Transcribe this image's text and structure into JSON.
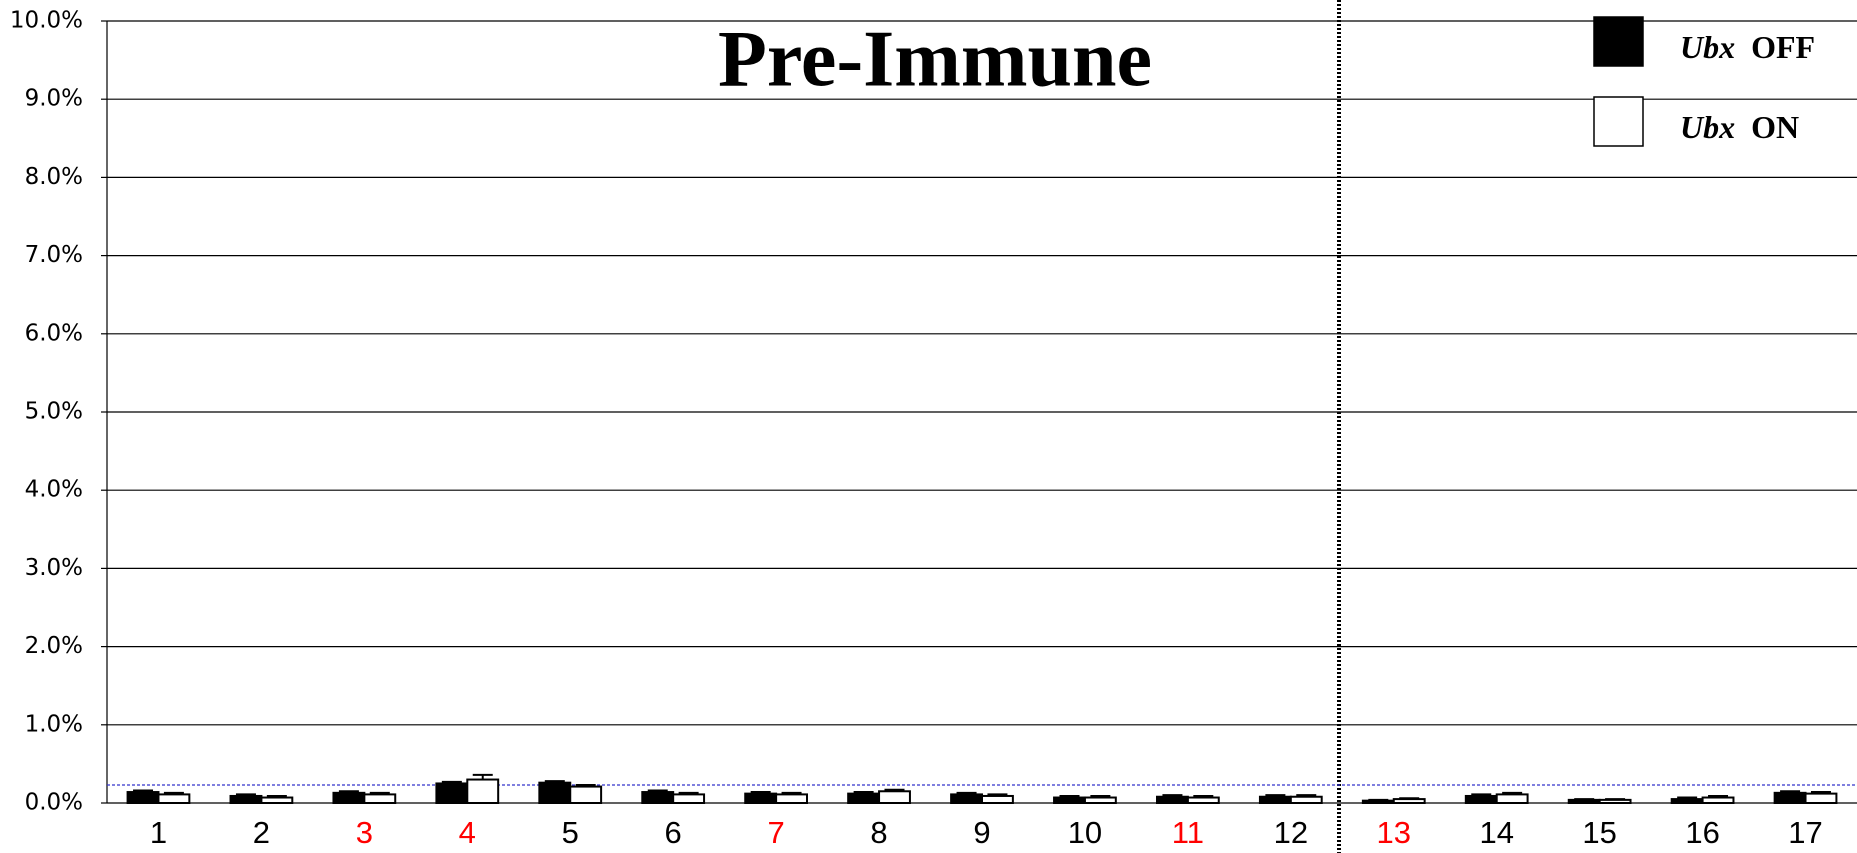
{
  "chart_data": {
    "type": "bar",
    "title": "Pre-Immune",
    "categories": [
      "1",
      "2",
      "3",
      "4",
      "5",
      "6",
      "7",
      "8",
      "9",
      "10",
      "11",
      "12",
      "13",
      "14",
      "15",
      "16",
      "17"
    ],
    "category_colors": [
      "#000",
      "#000",
      "#ff0000",
      "#ff0000",
      "#000",
      "#000",
      "#ff0000",
      "#000",
      "#000",
      "#000",
      "#ff0000",
      "#000",
      "#ff0000",
      "#000",
      "#000",
      "#000",
      "#000"
    ],
    "series": [
      {
        "name": "Ubx OFF",
        "color": "#000000",
        "values": [
          0.14,
          0.09,
          0.13,
          0.25,
          0.26,
          0.14,
          0.12,
          0.12,
          0.11,
          0.07,
          0.08,
          0.08,
          0.03,
          0.09,
          0.04,
          0.05,
          0.13
        ],
        "errors": [
          0.02,
          0.02,
          0.02,
          0.02,
          0.02,
          0.02,
          0.02,
          0.02,
          0.02,
          0.02,
          0.02,
          0.02,
          0.01,
          0.02,
          0.01,
          0.02,
          0.02
        ]
      },
      {
        "name": "Ubx ON",
        "color": "#ffffff",
        "values": [
          0.11,
          0.07,
          0.11,
          0.3,
          0.21,
          0.11,
          0.11,
          0.15,
          0.09,
          0.07,
          0.07,
          0.08,
          0.05,
          0.11,
          0.04,
          0.07,
          0.12
        ],
        "errors": [
          0.02,
          0.02,
          0.02,
          0.06,
          0.02,
          0.02,
          0.02,
          0.02,
          0.02,
          0.02,
          0.02,
          0.02,
          0.01,
          0.02,
          0.01,
          0.02,
          0.02
        ]
      }
    ],
    "ylim": [
      0,
      10
    ],
    "yticks": [
      {
        "value": 0,
        "label": "0.0%"
      },
      {
        "value": 1,
        "label": "1.0%"
      },
      {
        "value": 2,
        "label": "2.0%"
      },
      {
        "value": 3,
        "label": "3.0%"
      },
      {
        "value": 4,
        "label": "4.0%"
      },
      {
        "value": 5,
        "label": "5.0%"
      },
      {
        "value": 6,
        "label": "6.0%"
      },
      {
        "value": 7,
        "label": "7.0%"
      },
      {
        "value": 8,
        "label": "8.0%"
      },
      {
        "value": 9,
        "label": "9.0%"
      },
      {
        "value": 10,
        "label": "10.0%"
      }
    ],
    "grid": true,
    "reference_line": {
      "value": 0.23,
      "color": "#3333cc"
    },
    "legend": "upper right"
  }
}
